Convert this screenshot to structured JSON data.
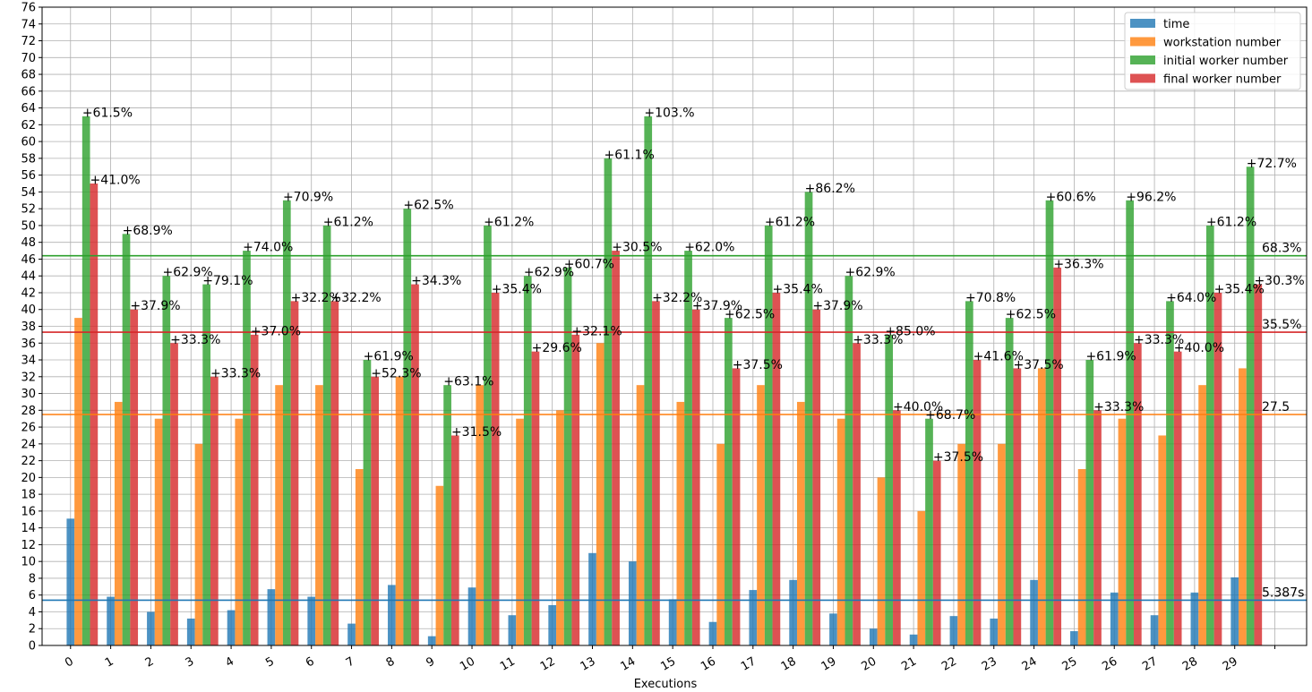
{
  "chart_data": {
    "type": "bar",
    "xlabel": "Executions",
    "ylabel": "",
    "ylim": [
      0,
      76
    ],
    "ytick_step": 2,
    "grid": true,
    "legend_position": "top-right",
    "categories": [
      "0",
      "1",
      "2",
      "3",
      "4",
      "5",
      "6",
      "7",
      "8",
      "9",
      "10",
      "11",
      "12",
      "13",
      "14",
      "15",
      "16",
      "17",
      "18",
      "19",
      "20",
      "21",
      "22",
      "23",
      "24",
      "25",
      "26",
      "27",
      "28",
      "29"
    ],
    "series": [
      {
        "name": "time",
        "color": "#1f77b4",
        "values": [
          15.1,
          5.8,
          4.0,
          3.2,
          4.2,
          6.7,
          5.8,
          2.6,
          7.2,
          1.1,
          6.9,
          3.6,
          4.8,
          11.0,
          10.0,
          5.5,
          2.8,
          6.6,
          7.8,
          3.8,
          2.0,
          1.3,
          3.5,
          3.2,
          7.8,
          1.7,
          6.3,
          3.6,
          6.3,
          8.1
        ]
      },
      {
        "name": "workstation number",
        "color": "#ff7f0e",
        "values": [
          39,
          29,
          27,
          24,
          27,
          31,
          31,
          21,
          32,
          19,
          31,
          27,
          28,
          36,
          31,
          29,
          24,
          31,
          29,
          27,
          20,
          16,
          24,
          24,
          33,
          21,
          27,
          25,
          31,
          33
        ]
      },
      {
        "name": "initial worker number",
        "color": "#2ca02c",
        "values": [
          63,
          49,
          44,
          43,
          47,
          53,
          50,
          34,
          52,
          31,
          50,
          44,
          45,
          58,
          63,
          47,
          39,
          50,
          54,
          44,
          37,
          27,
          41,
          39,
          53,
          34,
          53,
          41,
          50,
          57
        ]
      },
      {
        "name": "final worker number",
        "color": "#d62728",
        "values": [
          55,
          40,
          36,
          32,
          37,
          41,
          41,
          32,
          43,
          25,
          42,
          35,
          37,
          47,
          41,
          40,
          33,
          42,
          40,
          36,
          28,
          22,
          34,
          33,
          45,
          28,
          36,
          35,
          42,
          43
        ]
      }
    ],
    "initial_labels": [
      "+61.5%",
      "+68.9%",
      "+62.9%",
      "+79.1%",
      "+74.0%",
      "+70.9%",
      "+61.2%",
      "+61.9%",
      "+62.5%",
      "+63.1%",
      "+61.2%",
      "+62.9%",
      "+60.7%",
      "+61.1%",
      "+103.%",
      "+62.0%",
      "+62.5%",
      "+61.2%",
      "+86.2%",
      "+62.9%",
      "+85.0%",
      "+68.7%",
      "+70.8%",
      "+62.5%",
      "+60.6%",
      "+61.9%",
      "+96.2%",
      "+64.0%",
      "+61.2%",
      "+72.7%"
    ],
    "final_labels": [
      "+41.0%",
      "+37.9%",
      "+33.3%",
      "+33.3%",
      "+37.0%",
      "+32.2%",
      "+32.2%",
      "+52.3%",
      "+34.3%",
      "+31.5%",
      "+35.4%",
      "+29.6%",
      "+32.1%",
      "+30.5%",
      "+32.2%",
      "+37.9%",
      "+37.5%",
      "+35.4%",
      "+37.9%",
      "+33.3%",
      "+40.0%",
      "+37.5%",
      "+41.6%",
      "+37.5%",
      "+36.3%",
      "+33.3%",
      "+33.3%",
      "+40.0%",
      "+35.4%",
      "+30.3%"
    ],
    "hlines": [
      {
        "value": 5.387,
        "label": "5.387s",
        "color": "#1f77b4"
      },
      {
        "value": 27.5,
        "label": "27.5",
        "color": "#ff7f0e"
      },
      {
        "value": 46.4,
        "label": "68.3%",
        "color": "#2ca02c"
      },
      {
        "value": 37.3,
        "label": "35.5%",
        "color": "#d62728"
      }
    ]
  }
}
